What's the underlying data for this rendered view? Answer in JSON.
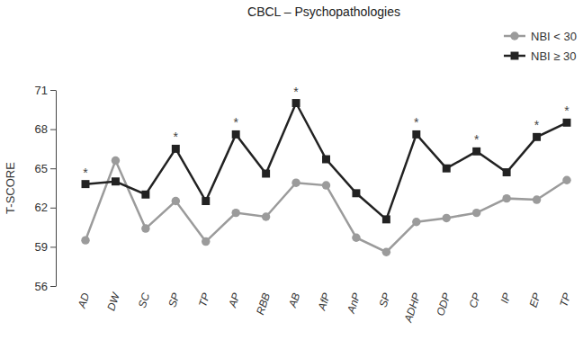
{
  "chart_data": {
    "type": "line",
    "title": "CBCL – Psychopathologies",
    "y_label": "T-SCORE",
    "categories": [
      "AD",
      "DW",
      "SC",
      "SP",
      "TP",
      "AP",
      "RBB",
      "AB",
      "AfP",
      "AnP",
      "SP",
      "ADHP",
      "ODP",
      "CP",
      "IP",
      "EP",
      "TP"
    ],
    "series": [
      {
        "name": "NBI < 30",
        "color": "#9b9b9b",
        "marker": "circle",
        "line_style": "solid",
        "values": [
          59.5,
          65.6,
          60.4,
          62.5,
          59.4,
          61.6,
          61.3,
          63.9,
          63.7,
          59.7,
          58.6,
          60.9,
          61.2,
          61.6,
          62.7,
          62.6,
          64.1
        ]
      },
      {
        "name": "NBI ≥ 30",
        "color": "#222222",
        "marker": "square",
        "line_style": "solid",
        "values": [
          63.8,
          64.0,
          63.0,
          66.5,
          62.5,
          67.6,
          64.6,
          70.0,
          65.7,
          63.1,
          61.1,
          67.6,
          65.0,
          66.3,
          64.7,
          67.4,
          68.5
        ]
      }
    ],
    "annotations": [
      {
        "text": "*",
        "x": 0
      },
      {
        "text": "*",
        "x": 3
      },
      {
        "text": "*",
        "x": 5
      },
      {
        "text": "*",
        "x": 7
      },
      {
        "text": "*",
        "x": 11
      },
      {
        "text": "*",
        "x": 13
      },
      {
        "text": "*",
        "x": 15
      },
      {
        "text": "*",
        "x": 16
      }
    ],
    "ylim": [
      56,
      71
    ],
    "yticks": [
      56,
      59,
      62,
      65,
      68,
      71
    ],
    "grid": false,
    "legend": "upper right"
  }
}
